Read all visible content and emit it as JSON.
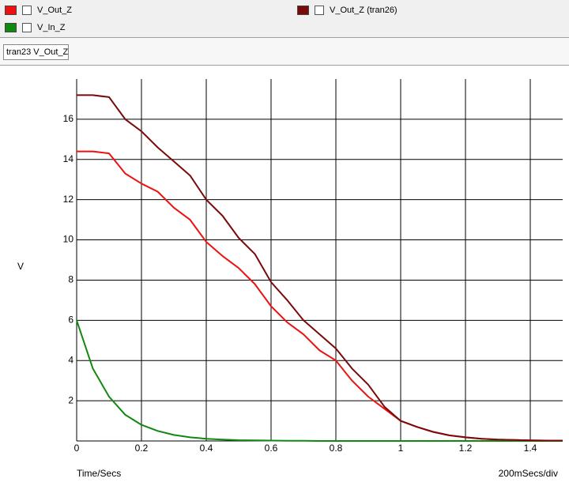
{
  "chart_data": {
    "type": "line",
    "tab": "tran23 V_Out_Z",
    "ylabel": "V",
    "xlabel": "Time/Secs",
    "x_scale_label": "200mSecs/div",
    "x": [
      0,
      0.05,
      0.1,
      0.15,
      0.2,
      0.25,
      0.3,
      0.35,
      0.4,
      0.45,
      0.5,
      0.55,
      0.6,
      0.65,
      0.7,
      0.75,
      0.8,
      0.85,
      0.9,
      0.95,
      1.0,
      1.05,
      1.1,
      1.15,
      1.2,
      1.25,
      1.3,
      1.35,
      1.4,
      1.45,
      1.5
    ],
    "series": [
      {
        "name": "V_Out_Z",
        "color": "#ee1111",
        "values": [
          14.4,
          14.4,
          14.3,
          13.3,
          12.8,
          12.4,
          11.6,
          11.0,
          9.9,
          9.2,
          8.6,
          7.8,
          6.7,
          5.9,
          5.3,
          4.5,
          4.0,
          3.0,
          2.2,
          1.6,
          1.0,
          0.7,
          0.45,
          0.28,
          0.18,
          0.11,
          0.07,
          0.05,
          0.03,
          0.02,
          0.02
        ]
      },
      {
        "name": "V_In_Z",
        "color": "#118811",
        "values": [
          6,
          3.6,
          2.2,
          1.3,
          0.8,
          0.5,
          0.3,
          0.18,
          0.11,
          0.07,
          0.04,
          0.03,
          0.02,
          0.01,
          0.01,
          0,
          0,
          0,
          0,
          0,
          0,
          0,
          0,
          0,
          0,
          0,
          0,
          0,
          0,
          0,
          0
        ]
      },
      {
        "name": "V_Out_Z (tran26)",
        "color": "#7a0a0a",
        "values": [
          17.2,
          17.2,
          17.1,
          16.0,
          15.4,
          14.6,
          13.9,
          13.2,
          12.0,
          11.2,
          10.1,
          9.3,
          7.9,
          7.0,
          6.0,
          5.3,
          4.6,
          3.6,
          2.8,
          1.7,
          1.0,
          0.7,
          0.45,
          0.28,
          0.18,
          0.11,
          0.07,
          0.05,
          0.03,
          0.02,
          0.02
        ]
      }
    ],
    "xlim": [
      0,
      1.5
    ],
    "ylim": [
      0,
      18
    ],
    "xticks": [
      0,
      0.2,
      0.4,
      0.6,
      0.8,
      1,
      1.2,
      1.4
    ],
    "yticks": [
      2,
      4,
      6,
      8,
      10,
      12,
      14,
      16
    ],
    "grid": true
  }
}
